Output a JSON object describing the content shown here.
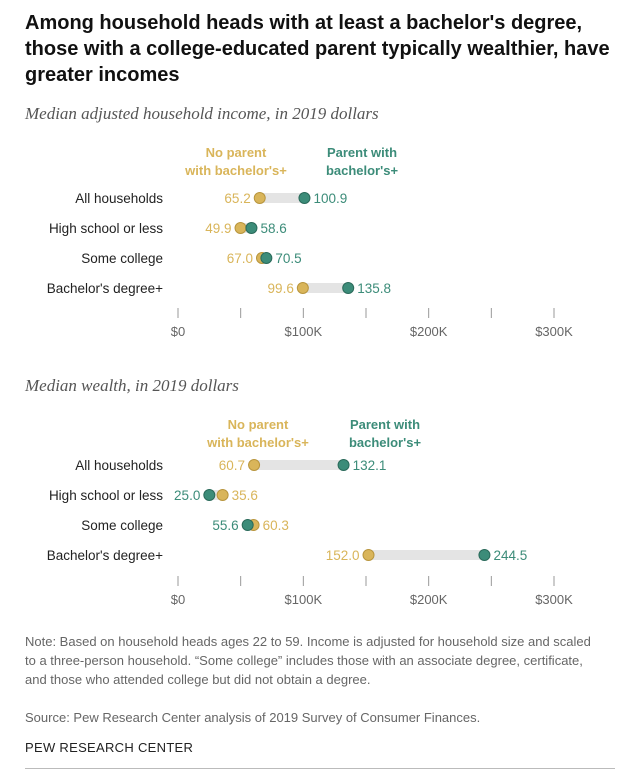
{
  "title": "Among household heads with at least a bachelor's degree, those with a college-educated parent typically wealthier, have greater incomes",
  "legend": {
    "no_parent_line1": "No parent",
    "no_parent_line2": "with bachelor's+",
    "parent_line1": "Parent with",
    "parent_line2": "bachelor's+"
  },
  "colors": {
    "no_parent": "#D9B55A",
    "parent": "#3C8C79",
    "bar": "#e4e4e4",
    "label": "#222222"
  },
  "chart_data": [
    {
      "type": "dot",
      "title": "Median adjusted household income, in 2019 dollars",
      "categories": [
        "All households",
        "High school or less",
        "Some college",
        "Bachelor's degree+"
      ],
      "series": [
        {
          "name": "No parent with bachelor's+",
          "values": [
            65.2,
            49.9,
            67.0,
            99.6
          ],
          "labels": [
            "65.2",
            "49.9",
            "67.0",
            "99.6"
          ]
        },
        {
          "name": "Parent with bachelor's+",
          "values": [
            100.9,
            58.6,
            70.5,
            135.8
          ],
          "labels": [
            "100.9",
            "58.6",
            "70.5",
            "135.8"
          ]
        }
      ],
      "xlim": [
        0,
        300
      ],
      "ticks": [
        0,
        50,
        100,
        150,
        200,
        250,
        300
      ],
      "tick_labels": [
        "$0",
        "",
        "$100K",
        "",
        "$200K",
        "",
        "$300K"
      ]
    },
    {
      "type": "dot",
      "title": "Median wealth, in 2019 dollars",
      "categories": [
        "All households",
        "High school or less",
        "Some college",
        "Bachelor's degree+"
      ],
      "series": [
        {
          "name": "No parent with bachelor's+",
          "values": [
            60.7,
            35.6,
            60.3,
            152.0
          ],
          "labels": [
            "60.7",
            "35.6",
            "60.3",
            "152.0"
          ]
        },
        {
          "name": "Parent with bachelor's+",
          "values": [
            132.1,
            25.0,
            55.6,
            244.5
          ],
          "labels": [
            "132.1",
            "25.0",
            "55.6",
            "244.5"
          ]
        }
      ],
      "xlim": [
        0,
        300
      ],
      "ticks": [
        0,
        50,
        100,
        150,
        200,
        250,
        300
      ],
      "tick_labels": [
        "$0",
        "",
        "$100K",
        "",
        "$200K",
        "",
        "$300K"
      ]
    }
  ],
  "note": "Note: Based on household heads ages 22 to 59. Income is adjusted for household size and scaled to a three-person household. “Some college” includes those with an associate degree, certificate, and those who attended college but did not obtain a degree.",
  "source": "Source: Pew Research Center analysis of 2019 Survey of Consumer Finances.",
  "brand": "PEW RESEARCH CENTER"
}
